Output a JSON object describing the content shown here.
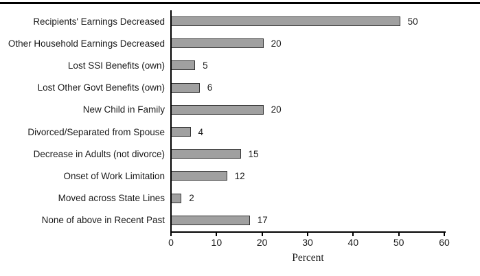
{
  "chart_data": {
    "type": "bar",
    "orientation": "horizontal",
    "categories": [
      "Recipients' Earnings Decreased",
      "Other Household Earnings Decreased",
      "Lost SSI Benefits (own)",
      "Lost Other Govt Benefits (own)",
      "New Child in Family",
      "Divorced/Separated from Spouse",
      "Decrease in Adults (not divorce)",
      "Onset of Work Limitation",
      "Moved across State Lines",
      "None of above in Recent Past"
    ],
    "values": [
      50,
      20,
      5,
      6,
      20,
      4,
      15,
      12,
      2,
      17
    ],
    "xlabel": "Percent",
    "xlim": [
      0,
      60
    ],
    "x_ticks": [
      0,
      10,
      20,
      30,
      40,
      50,
      60
    ],
    "show_value_labels": true,
    "grid": false,
    "bar_color": "#a0a0a0",
    "bar_border_color": "#333333",
    "axis_color": "#000000"
  }
}
